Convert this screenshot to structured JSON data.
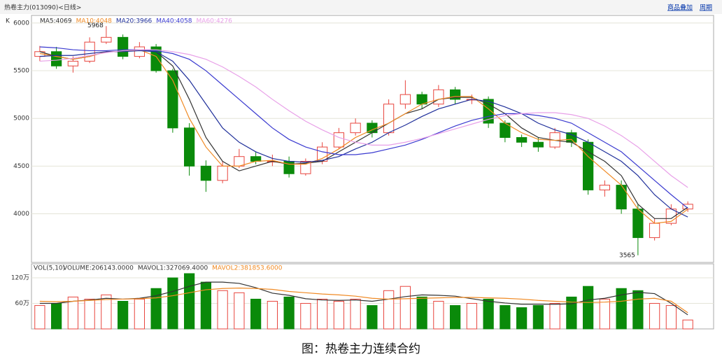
{
  "header": {
    "title": "热卷主力(013090)<日线>",
    "buttons": [
      "商品叠加",
      "周期"
    ]
  },
  "caption": "图：热卷主力连续合约",
  "chart_data": {
    "type": "candlestick",
    "label": "K",
    "ylim": [
      3490,
      6080
    ],
    "yticks": [
      4000,
      4500,
      5000,
      5500,
      6000
    ],
    "grid": true,
    "up_color": "#e8463f",
    "down_color": "#0a8a0a",
    "max_label": 5968,
    "min_label": 3565,
    "open": [
      5650,
      5700,
      5550,
      5600,
      5800,
      5850,
      5650,
      5750,
      5500,
      4900,
      4500,
      4350,
      4500,
      4600,
      4550,
      4550,
      4420,
      4550,
      4700,
      4850,
      4950,
      4850,
      5150,
      5250,
      5150,
      5300,
      5200,
      5200,
      4950,
      4800,
      4750,
      4700,
      4850,
      4750,
      4250,
      4300,
      4050,
      3750,
      3900,
      4050
    ],
    "high": [
      5760,
      5750,
      5650,
      5850,
      5968,
      5880,
      5800,
      5780,
      5520,
      4950,
      4560,
      4550,
      4680,
      4650,
      4620,
      4600,
      4580,
      4750,
      4900,
      5000,
      4980,
      5200,
      5400,
      5280,
      5350,
      5330,
      5250,
      5230,
      4980,
      4830,
      4800,
      4900,
      4880,
      4780,
      4350,
      4350,
      4100,
      3950,
      4100,
      4130
    ],
    "low": [
      5600,
      5520,
      5480,
      5580,
      5780,
      5620,
      5630,
      5480,
      4850,
      4400,
      4230,
      4320,
      4480,
      4520,
      4500,
      4380,
      4400,
      4520,
      4680,
      4820,
      4800,
      4820,
      5100,
      5100,
      5120,
      5150,
      5150,
      4900,
      4750,
      4700,
      4650,
      4680,
      4700,
      4200,
      4180,
      4000,
      3565,
      3720,
      3880,
      4020
    ],
    "close": [
      5700,
      5550,
      5600,
      5800,
      5850,
      5650,
      5750,
      5500,
      4900,
      4500,
      4350,
      4500,
      4600,
      4550,
      4550,
      4420,
      4550,
      4700,
      4850,
      4950,
      4850,
      5150,
      5250,
      5150,
      5300,
      5200,
      5200,
      4950,
      4800,
      4750,
      4700,
      4850,
      4750,
      4250,
      4300,
      4050,
      3750,
      3900,
      4050,
      4100
    ],
    "series": [
      {
        "name": "MA5:4069",
        "color": "#333333",
        "values": [
          5700,
          5650,
          5620,
          5650,
          5700,
          5700,
          5720,
          5700,
          5550,
          5200,
          4800,
          4550,
          4450,
          4500,
          4550,
          4520,
          4530,
          4550,
          4650,
          4750,
          4850,
          4950,
          5050,
          5100,
          5200,
          5220,
          5220,
          5150,
          5050,
          4900,
          4800,
          4770,
          4750,
          4650,
          4550,
          4400,
          4100,
          3950,
          3950,
          4069
        ]
      },
      {
        "name": "MA10:4048",
        "color": "#f08a24",
        "values": [
          5680,
          5650,
          5620,
          5650,
          5700,
          5700,
          5720,
          5650,
          5400,
          5000,
          4700,
          4500,
          4500,
          4550,
          4560,
          4520,
          4520,
          4580,
          4680,
          4800,
          4880,
          4950,
          5050,
          5150,
          5200,
          5230,
          5230,
          5100,
          4950,
          4850,
          4780,
          4770,
          4780,
          4600,
          4450,
          4300,
          4050,
          3900,
          3920,
          4048
        ]
      },
      {
        "name": "MA20:3966",
        "color": "#1f2f9a",
        "values": [
          5650,
          5660,
          5660,
          5680,
          5700,
          5700,
          5710,
          5700,
          5600,
          5400,
          5150,
          4900,
          4750,
          4650,
          4580,
          4550,
          4540,
          4560,
          4600,
          4680,
          4750,
          4850,
          4930,
          5020,
          5100,
          5150,
          5200,
          5180,
          5120,
          5050,
          4950,
          4880,
          4830,
          4750,
          4650,
          4550,
          4400,
          4200,
          4050,
          3966
        ]
      },
      {
        "name": "MA40:4058",
        "color": "#3a3ad0",
        "values": [
          5750,
          5740,
          5720,
          5710,
          5710,
          5720,
          5720,
          5710,
          5680,
          5620,
          5500,
          5350,
          5200,
          5050,
          4900,
          4780,
          4700,
          4650,
          4620,
          4620,
          4640,
          4680,
          4720,
          4780,
          4850,
          4920,
          4980,
          5020,
          5050,
          5050,
          5030,
          5000,
          4950,
          4850,
          4750,
          4650,
          4500,
          4350,
          4200,
          4058
        ]
      },
      {
        "name": "MA60:4276",
        "color": "#e8a0e8",
        "values": [
          5600,
          5610,
          5630,
          5660,
          5690,
          5710,
          5720,
          5720,
          5700,
          5670,
          5620,
          5540,
          5440,
          5330,
          5200,
          5080,
          4970,
          4880,
          4800,
          4750,
          4720,
          4720,
          4750,
          4790,
          4840,
          4890,
          4940,
          4990,
          5030,
          5050,
          5060,
          5060,
          5040,
          5000,
          4920,
          4820,
          4700,
          4550,
          4400,
          4276
        ]
      }
    ],
    "volume": {
      "label": "VOL(5,10)",
      "total_label": "VOLUME:206143.0000",
      "ylim": [
        0,
        153
      ],
      "yticks": [
        {
          "value": 60,
          "label": "60万"
        },
        {
          "value": 120,
          "label": "120万"
        }
      ],
      "values": [
        55,
        60,
        75,
        70,
        80,
        65,
        70,
        95,
        120,
        130,
        110,
        90,
        85,
        70,
        65,
        75,
        60,
        70,
        65,
        70,
        55,
        90,
        100,
        75,
        65,
        55,
        60,
        70,
        55,
        50,
        55,
        60,
        75,
        100,
        70,
        95,
        90,
        60,
        55,
        21
      ],
      "series": [
        {
          "name": "MAVOL1:327069.4000",
          "color": "#333333",
          "values": [
            60,
            60,
            65,
            68,
            72,
            70,
            72,
            78,
            88,
            100,
            110,
            110,
            107,
            97,
            84,
            79,
            71,
            68,
            67,
            68,
            65,
            70,
            76,
            80,
            79,
            77,
            71,
            65,
            61,
            58,
            58,
            58,
            59,
            68,
            72,
            80,
            86,
            83,
            60,
            33
          ]
        },
        {
          "name": "MAVOL2:381853.6000",
          "color": "#f08a24",
          "values": [
            65,
            64,
            65,
            67,
            69,
            70,
            71,
            73,
            78,
            85,
            92,
            95,
            96,
            95,
            93,
            88,
            85,
            82,
            80,
            77,
            72,
            70,
            71,
            72,
            73,
            74,
            74,
            73,
            72,
            70,
            67,
            65,
            63,
            62,
            63,
            65,
            70,
            72,
            65,
            38
          ]
        }
      ]
    }
  }
}
